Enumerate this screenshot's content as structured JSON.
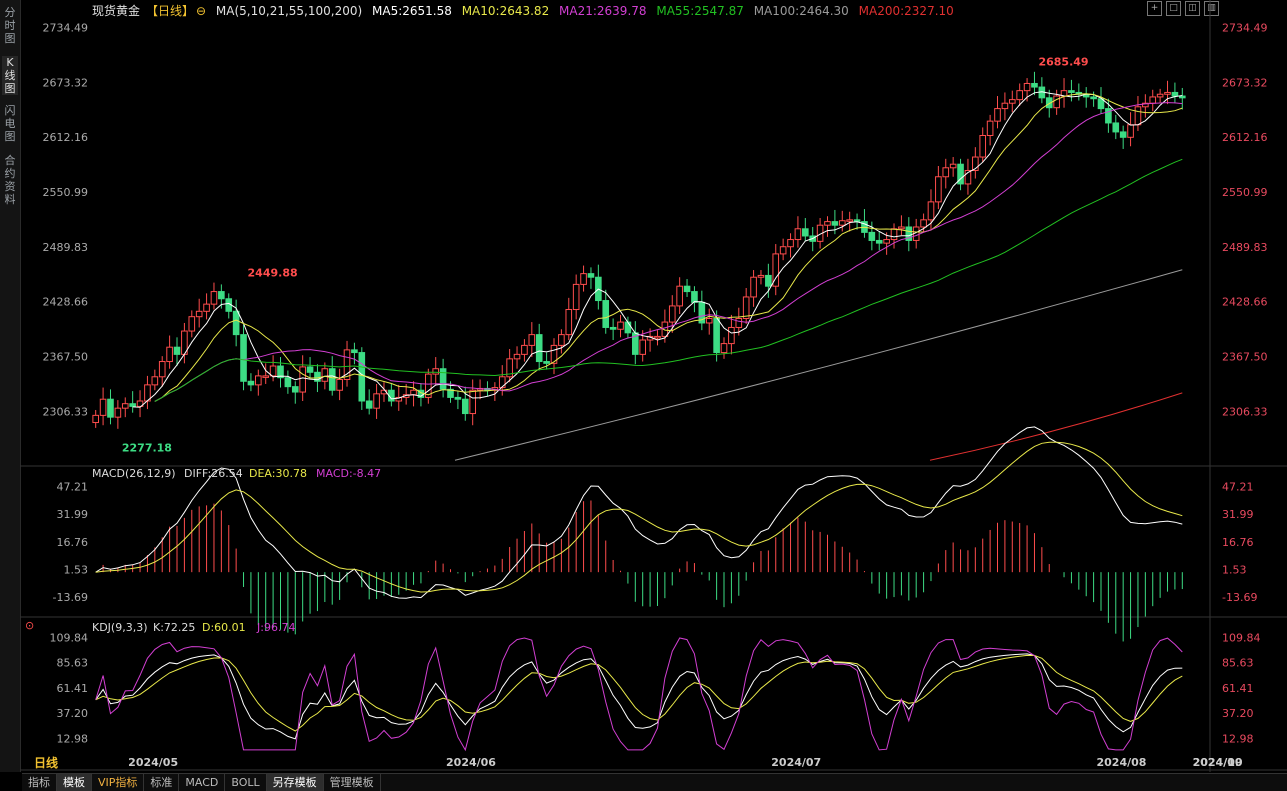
{
  "sidebar": {
    "tabs": [
      {
        "label": "分时图",
        "active": false
      },
      {
        "label": "K线图",
        "active": true
      },
      {
        "label": "闪电图",
        "active": false
      },
      {
        "label": "合约资料",
        "active": false
      }
    ]
  },
  "header": {
    "instrument": "现货黄金",
    "period_tag": "【日线】",
    "ma_params": "MA(5,10,21,55,100,200)",
    "ma5": "MA5:2651.58",
    "ma10": "MA10:2643.82",
    "ma21": "MA21:2639.78",
    "ma55": "MA55:2547.87",
    "ma100": "MA100:2464.30",
    "ma200": "MA200:2327.10"
  },
  "macd_header": {
    "params": "MACD(26,12,9)",
    "diff": "DIFF:26.54",
    "dea": "DEA:30.78",
    "macd": "MACD:-8.47"
  },
  "kdj_header": {
    "params": "KDJ(9,3,3)",
    "k": "K:72.25",
    "d": "D:60.01",
    "j": "J:96.74"
  },
  "period_label": "日线",
  "bottom_tabs": [
    {
      "label": "指标",
      "active": false,
      "vip": false
    },
    {
      "label": "模板",
      "active": true,
      "vip": false
    },
    {
      "label": "VIP指标",
      "active": false,
      "vip": true
    },
    {
      "label": "标准",
      "active": false,
      "vip": false
    },
    {
      "label": "MACD",
      "active": false,
      "vip": false
    },
    {
      "label": "BOLL",
      "active": false,
      "vip": false
    },
    {
      "label": "另存模板",
      "active": true,
      "vip": false
    },
    {
      "label": "管理模板",
      "active": false,
      "vip": false
    }
  ],
  "colors": {
    "up": "#ff4d4d",
    "down": "#3ddc84",
    "ma5": "#ffffff",
    "ma10": "#e8e84a",
    "ma21": "#d23fd2",
    "ma55": "#22c022",
    "ma100": "#9a9a9a",
    "ma200": "#e03030",
    "axis_text": "#e84a5f"
  },
  "chart_data": [
    {
      "type": "candlestick",
      "ylim": [
        2250,
        2745
      ],
      "y_ticks": [
        "2734.49",
        "2673.32",
        "2612.16",
        "2550.99",
        "2489.83",
        "2428.66",
        "2367.50",
        "2306.33"
      ],
      "x_ticks": [
        "2024/05",
        "2024/06",
        "2024/07",
        "2024/08",
        "2024/09",
        "2024/10"
      ],
      "annotations": [
        {
          "text": "2449.88",
          "value": 2449.88,
          "kind": "high"
        },
        {
          "text": "2277.18",
          "value": 2277.18,
          "kind": "low"
        },
        {
          "text": "2685.49",
          "value": 2685.49,
          "kind": "high"
        }
      ],
      "closes": [
        2302,
        2320,
        2300,
        2310,
        2315,
        2312,
        2318,
        2336,
        2345,
        2362,
        2378,
        2370,
        2396,
        2412,
        2418,
        2426,
        2440,
        2432,
        2418,
        2392,
        2340,
        2336,
        2346,
        2346,
        2357,
        2344,
        2334,
        2328,
        2356,
        2350,
        2340,
        2354,
        2330,
        2342,
        2375,
        2372,
        2318,
        2310,
        2326,
        2330,
        2318,
        2322,
        2325,
        2330,
        2322,
        2348,
        2354,
        2331,
        2322,
        2320,
        2304,
        2330,
        2332,
        2330,
        2333,
        2345,
        2365,
        2370,
        2380,
        2392,
        2362,
        2360,
        2380,
        2392,
        2420,
        2448,
        2460,
        2456,
        2430,
        2400,
        2398,
        2406,
        2394,
        2370,
        2386,
        2390,
        2390,
        2406,
        2424,
        2446,
        2440,
        2428,
        2405,
        2410,
        2372,
        2382,
        2400,
        2410,
        2434,
        2456,
        2458,
        2446,
        2482,
        2490,
        2498,
        2510,
        2502,
        2496,
        2514,
        2518,
        2514,
        2519,
        2520,
        2518,
        2506,
        2497,
        2494,
        2498,
        2510,
        2512,
        2497,
        2512,
        2520,
        2540,
        2568,
        2578,
        2582,
        2560,
        2575,
        2590,
        2614,
        2630,
        2644,
        2650,
        2654,
        2664,
        2672,
        2668,
        2656,
        2645,
        2658,
        2664,
        2662,
        2660,
        2657,
        2655,
        2644,
        2628,
        2618,
        2612,
        2626,
        2646,
        2650,
        2657,
        2660,
        2662,
        2658,
        2656
      ]
    },
    {
      "type": "macd",
      "y_ticks": [
        "47.21",
        "31.99",
        "16.76",
        "1.53",
        "-13.69"
      ],
      "ylim": [
        -22,
        52
      ],
      "diff_last": 26.54,
      "dea_last": 30.78,
      "macd_last": -8.47
    },
    {
      "type": "kdj",
      "y_ticks": [
        "109.84",
        "85.63",
        "61.41",
        "37.20",
        "12.98"
      ],
      "ylim": [
        0,
        115
      ],
      "k_last": 72.25,
      "d_last": 60.01,
      "j_last": 96.74
    }
  ]
}
